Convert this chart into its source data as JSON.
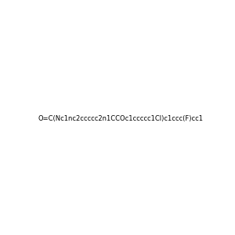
{
  "smiles": "O=C(Nc1nc2ccccc2n1CCOc1ccccc1Cl)c1ccc(F)cc1",
  "image_size": 300,
  "background_color": "#e8e8e8",
  "title": ""
}
